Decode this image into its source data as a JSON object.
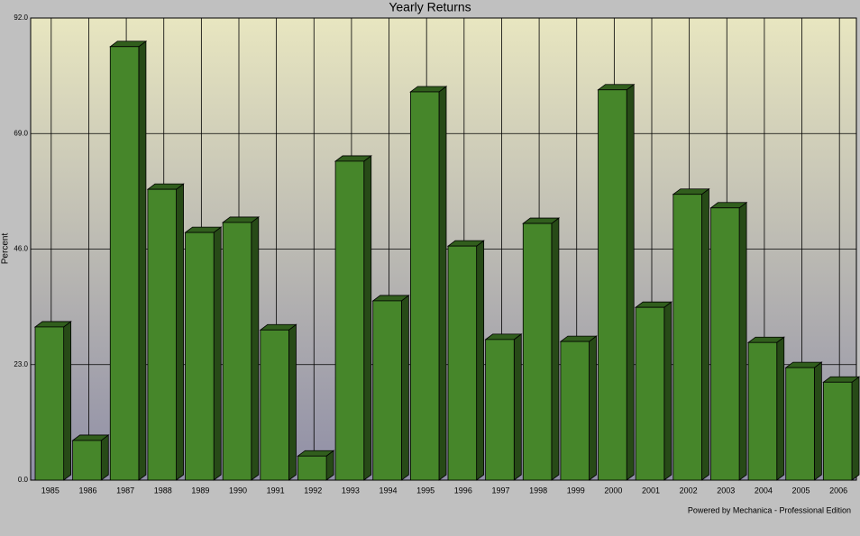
{
  "chart_data": {
    "type": "bar",
    "title": "Yearly Returns",
    "y_label": "Percent",
    "footer": "Powered by Mechanica - Professional Edition",
    "categories": [
      "1985",
      "1986",
      "1987",
      "1988",
      "1989",
      "1990",
      "1991",
      "1992",
      "1993",
      "1994",
      "1995",
      "1996",
      "1997",
      "1998",
      "1999",
      "2000",
      "2001",
      "2002",
      "2003",
      "2004",
      "2005",
      "2006"
    ],
    "values": [
      30.5,
      7.9,
      86.3,
      57.9,
      49.3,
      51.3,
      29.9,
      4.8,
      63.5,
      35.7,
      77.3,
      46.6,
      28.0,
      51.1,
      27.6,
      77.7,
      34.4,
      56.9,
      54.2,
      27.4,
      22.4,
      19.5
    ],
    "color": "#46862a",
    "ylim": [
      0,
      92
    ],
    "yticks": [
      {
        "value": 0,
        "label": "0.0"
      },
      {
        "value": 23,
        "label": "23.0"
      },
      {
        "value": 46,
        "label": "46.0"
      },
      {
        "value": 69,
        "label": "69.0"
      },
      {
        "value": 92,
        "label": "92.0"
      }
    ],
    "grid": true
  }
}
